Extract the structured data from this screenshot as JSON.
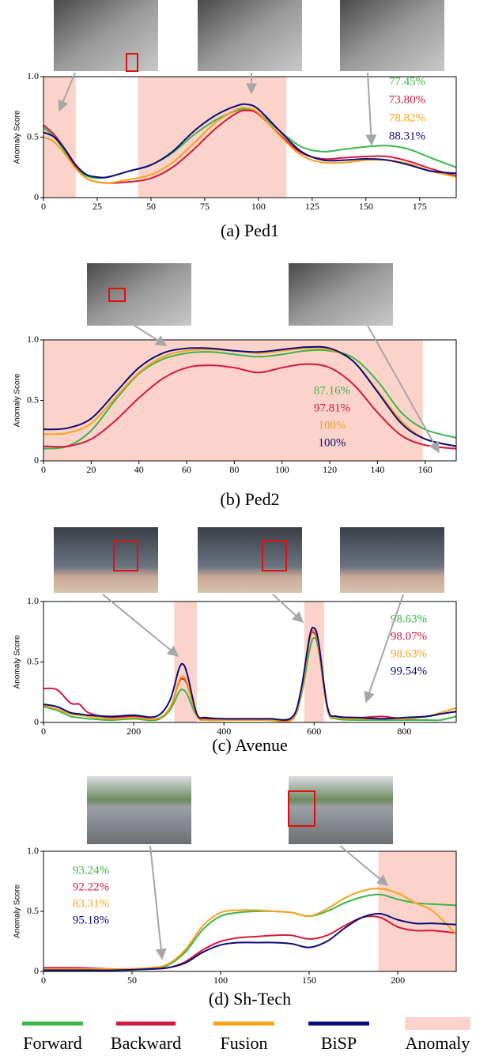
{
  "chart_data": [
    {
      "type": "line",
      "title": "(a) Ped1",
      "y_label": "Anomaly Score",
      "x": [
        0,
        5,
        10,
        15,
        20,
        25,
        30,
        40,
        50,
        60,
        70,
        80,
        90,
        95,
        100,
        110,
        120,
        130,
        140,
        150,
        160,
        170,
        180,
        192
      ],
      "series": [
        {
          "auc": "77.45%",
          "values": [
            0.58,
            0.5,
            0.38,
            0.25,
            0.18,
            0.16,
            0.17,
            0.22,
            0.27,
            0.37,
            0.52,
            0.64,
            0.72,
            0.73,
            0.7,
            0.55,
            0.42,
            0.38,
            0.4,
            0.42,
            0.43,
            0.4,
            0.33,
            0.25
          ]
        },
        {
          "auc": "73.80%",
          "values": [
            0.6,
            0.52,
            0.4,
            0.25,
            0.16,
            0.13,
            0.12,
            0.13,
            0.16,
            0.25,
            0.4,
            0.57,
            0.7,
            0.72,
            0.69,
            0.52,
            0.37,
            0.32,
            0.33,
            0.34,
            0.34,
            0.3,
            0.24,
            0.18
          ]
        },
        {
          "auc": "78.82%",
          "values": [
            0.5,
            0.46,
            0.36,
            0.24,
            0.16,
            0.13,
            0.12,
            0.15,
            0.19,
            0.29,
            0.45,
            0.62,
            0.73,
            0.74,
            0.7,
            0.51,
            0.35,
            0.29,
            0.29,
            0.31,
            0.31,
            0.28,
            0.22,
            0.17
          ]
        },
        {
          "auc": "88.31%",
          "values": [
            0.54,
            0.5,
            0.4,
            0.27,
            0.19,
            0.17,
            0.17,
            0.22,
            0.27,
            0.38,
            0.55,
            0.68,
            0.76,
            0.77,
            0.73,
            0.55,
            0.38,
            0.31,
            0.31,
            0.32,
            0.31,
            0.27,
            0.22,
            0.2
          ]
        }
      ],
      "anomaly_regions": [
        [
          0,
          15
        ],
        [
          44,
          113
        ]
      ],
      "xlim": [
        0,
        192
      ],
      "ylim": [
        0,
        1
      ],
      "xticks": [
        0,
        25,
        50,
        75,
        100,
        125,
        150,
        175
      ],
      "yticks": [
        0,
        0.5,
        {
          "value": 1,
          "label": "1.0"
        }
      ]
    },
    {
      "type": "line",
      "title": "(b) Ped2",
      "y_label": "Anomaly Score",
      "x": [
        0,
        10,
        20,
        30,
        40,
        50,
        60,
        70,
        80,
        90,
        100,
        110,
        120,
        130,
        140,
        150,
        160,
        173
      ],
      "series": [
        {
          "auc": "87.16%",
          "values": [
            0.1,
            0.12,
            0.25,
            0.5,
            0.72,
            0.84,
            0.89,
            0.9,
            0.88,
            0.86,
            0.88,
            0.91,
            0.91,
            0.85,
            0.66,
            0.4,
            0.26,
            0.19
          ]
        },
        {
          "auc": "97.81%",
          "values": [
            0.12,
            0.12,
            0.18,
            0.33,
            0.52,
            0.68,
            0.77,
            0.79,
            0.77,
            0.73,
            0.77,
            0.8,
            0.77,
            0.63,
            0.4,
            0.21,
            0.13,
            0.1
          ]
        },
        {
          "auc": "100%",
          "values": [
            0.22,
            0.23,
            0.31,
            0.52,
            0.73,
            0.86,
            0.91,
            0.92,
            0.91,
            0.89,
            0.91,
            0.93,
            0.92,
            0.82,
            0.58,
            0.33,
            0.18,
            0.12
          ]
        },
        {
          "auc": "100%",
          "values": [
            0.26,
            0.27,
            0.35,
            0.56,
            0.77,
            0.89,
            0.93,
            0.93,
            0.91,
            0.9,
            0.92,
            0.94,
            0.93,
            0.82,
            0.57,
            0.31,
            0.18,
            0.12
          ]
        }
      ],
      "anomaly_regions": [
        [
          0,
          159
        ]
      ],
      "xlim": [
        0,
        173
      ],
      "ylim": [
        0,
        1
      ],
      "xticks": [
        0,
        20,
        40,
        60,
        80,
        100,
        120,
        140,
        160
      ],
      "yticks": [
        0,
        0.5,
        {
          "value": 1,
          "label": "1.0"
        }
      ]
    },
    {
      "type": "line",
      "title": "(c) Avenue",
      "y_label": "Anomaly Score",
      "x": [
        0,
        30,
        60,
        80,
        100,
        150,
        200,
        250,
        280,
        300,
        310,
        320,
        340,
        360,
        400,
        450,
        500,
        550,
        570,
        590,
        600,
        610,
        630,
        650,
        700,
        750,
        800,
        850,
        880,
        915
      ],
      "series": [
        {
          "auc": "98.63%",
          "values": [
            0.13,
            0.1,
            0.05,
            0.04,
            0.03,
            0.02,
            0.03,
            0.02,
            0.1,
            0.25,
            0.27,
            0.22,
            0.05,
            0.02,
            0.02,
            0.02,
            0.02,
            0.02,
            0.2,
            0.6,
            0.7,
            0.6,
            0.1,
            0.03,
            0.02,
            0.02,
            0.02,
            0.02,
            0.02,
            0.05
          ]
        },
        {
          "auc": "98.07%",
          "values": [
            0.28,
            0.27,
            0.16,
            0.15,
            0.08,
            0.04,
            0.05,
            0.03,
            0.12,
            0.33,
            0.36,
            0.3,
            0.06,
            0.03,
            0.03,
            0.03,
            0.03,
            0.03,
            0.22,
            0.68,
            0.74,
            0.62,
            0.1,
            0.05,
            0.04,
            0.05,
            0.03,
            0.05,
            0.07,
            0.09
          ]
        },
        {
          "auc": "98.63%",
          "values": [
            0.14,
            0.11,
            0.07,
            0.06,
            0.05,
            0.03,
            0.04,
            0.03,
            0.12,
            0.34,
            0.38,
            0.31,
            0.05,
            0.02,
            0.02,
            0.02,
            0.02,
            0.02,
            0.22,
            0.68,
            0.76,
            0.63,
            0.1,
            0.04,
            0.03,
            0.03,
            0.03,
            0.05,
            0.08,
            0.12
          ]
        },
        {
          "auc": "99.54%",
          "values": [
            0.15,
            0.13,
            0.08,
            0.07,
            0.06,
            0.05,
            0.06,
            0.05,
            0.18,
            0.44,
            0.48,
            0.38,
            0.07,
            0.04,
            0.03,
            0.03,
            0.03,
            0.04,
            0.25,
            0.71,
            0.78,
            0.66,
            0.12,
            0.05,
            0.04,
            0.03,
            0.04,
            0.05,
            0.07,
            0.09
          ]
        }
      ],
      "anomaly_regions": [
        [
          290,
          340
        ],
        [
          578,
          622
        ]
      ],
      "xlim": [
        0,
        915
      ],
      "ylim": [
        0,
        1
      ],
      "xticks": [
        0,
        200,
        400,
        600,
        800
      ],
      "yticks": [
        0,
        0.5,
        {
          "value": 1,
          "label": "1.0"
        }
      ]
    },
    {
      "type": "line",
      "title": "(d) Sh-Tech",
      "y_label": "Anomaly Score",
      "x": [
        0,
        20,
        40,
        60,
        70,
        80,
        90,
        100,
        110,
        120,
        130,
        140,
        150,
        160,
        170,
        180,
        190,
        200,
        210,
        220,
        233
      ],
      "series": [
        {
          "auc": "93.24%",
          "values": [
            0.02,
            0.02,
            0.02,
            0.02,
            0.05,
            0.16,
            0.35,
            0.46,
            0.49,
            0.5,
            0.5,
            0.49,
            0.46,
            0.5,
            0.57,
            0.62,
            0.64,
            0.6,
            0.57,
            0.56,
            0.55
          ]
        },
        {
          "auc": "92.22%",
          "values": [
            0.03,
            0.03,
            0.02,
            0.02,
            0.03,
            0.08,
            0.18,
            0.25,
            0.28,
            0.29,
            0.3,
            0.3,
            0.27,
            0.3,
            0.38,
            0.45,
            0.45,
            0.37,
            0.34,
            0.34,
            0.32
          ]
        },
        {
          "auc": "83.31%",
          "values": [
            0.02,
            0.02,
            0.02,
            0.03,
            0.06,
            0.18,
            0.38,
            0.49,
            0.51,
            0.51,
            0.5,
            0.49,
            0.46,
            0.52,
            0.61,
            0.67,
            0.69,
            0.65,
            0.57,
            0.5,
            0.31
          ]
        },
        {
          "auc": "95.18%",
          "values": [
            0.01,
            0.01,
            0.01,
            0.02,
            0.03,
            0.07,
            0.16,
            0.22,
            0.24,
            0.24,
            0.24,
            0.23,
            0.2,
            0.25,
            0.36,
            0.45,
            0.48,
            0.43,
            0.4,
            0.4,
            0.39
          ]
        }
      ],
      "anomaly_regions": [
        [
          189,
          233
        ]
      ],
      "xlim": [
        0,
        233
      ],
      "ylim": [
        0,
        1
      ],
      "xticks": [
        0,
        50,
        100,
        150,
        200
      ],
      "yticks": [
        0,
        0.5,
        {
          "value": 1,
          "label": "1.0"
        }
      ]
    }
  ],
  "legend": [
    {
      "name": "Forward",
      "color": "#3cb54a"
    },
    {
      "name": "Backward",
      "color": "#d6173e"
    },
    {
      "name": "Fusion",
      "color": "#f5a31a"
    },
    {
      "name": "BiSP",
      "color": "#0c0c7a"
    },
    {
      "name": "Anomaly",
      "color": "#fcd3cb"
    }
  ]
}
